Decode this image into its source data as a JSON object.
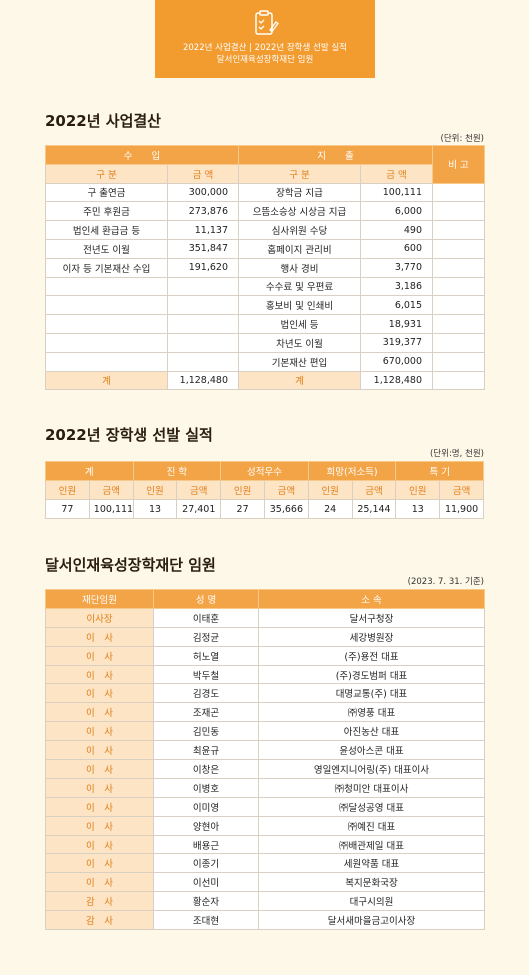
{
  "banner": {
    "lines": [
      "2022년 사업결산  |  2022년 장학생 선발 실적",
      "달서인재육성장학재단 임원"
    ]
  },
  "settlement": {
    "title": "2022년 사업결산",
    "unit": "(단위: 천원)",
    "head": {
      "income": "수　　입",
      "expense": "지　　출",
      "note": "비 고"
    },
    "subhead": [
      "구 분",
      "금 액",
      "구 분",
      "금 액"
    ],
    "rows": [
      [
        "구 출연금",
        "300,000",
        "장학금 지급",
        "100,111"
      ],
      [
        "주민 후원금",
        "273,876",
        "으뜸소승상 시상금 지급",
        "6,000"
      ],
      [
        "법인세 환급금 등",
        "11,137",
        "심사위원 수당",
        "490"
      ],
      [
        "전년도 이월",
        "351,847",
        "홈페이지 관리비",
        "600"
      ],
      [
        "이자 등 기본재산 수입",
        "191,620",
        "행사 경비",
        "3,770"
      ],
      [
        null,
        null,
        "수수료 및 우편료",
        "3,186"
      ],
      [
        null,
        null,
        "홍보비 및 인쇄비",
        "6,015"
      ],
      [
        null,
        null,
        "법인세 등",
        "18,931"
      ],
      [
        null,
        null,
        "차년도 이월",
        "319,377"
      ],
      [
        null,
        null,
        "기본재산 편입",
        "670,000"
      ]
    ],
    "total": [
      "계",
      "1,128,480",
      "계",
      "1,128,480"
    ]
  },
  "scholarship": {
    "title": "2022년 장학생 선발 실적",
    "unit": "(단위:명, 천원)",
    "head": [
      "계",
      "진 학",
      "성적우수",
      "희망(저소득)",
      "특 기"
    ],
    "subhead": [
      "인원",
      "금액",
      "인원",
      "금액",
      "인원",
      "금액",
      "인원",
      "금액",
      "인원",
      "금액"
    ],
    "row": [
      "77",
      "100,111",
      "13",
      "27,401",
      "27",
      "35,666",
      "24",
      "25,144",
      "13",
      "11,900"
    ]
  },
  "officers": {
    "title": "달서인재육성장학재단 임원",
    "date": "(2023. 7. 31. 기준)",
    "head": [
      "재단임원",
      "성 명",
      "소 속"
    ],
    "rows": [
      [
        "이사장",
        "이태훈",
        "달서구청장"
      ],
      [
        "이　사",
        "김정균",
        "세강병원장"
      ],
      [
        "이　사",
        "허노열",
        "(주)용전 대표"
      ],
      [
        "이　사",
        "박두철",
        "(주)경도범퍼 대표"
      ],
      [
        "이　사",
        "김경도",
        "대명교통(주) 대표"
      ],
      [
        "이　사",
        "조재곤",
        "㈜영풍 대표"
      ],
      [
        "이　사",
        "김민동",
        "아진농산 대표"
      ],
      [
        "이　사",
        "최윤규",
        "윤성아스콘 대표"
      ],
      [
        "이　사",
        "이창은",
        "영일엔지니어링(주) 대표이사"
      ],
      [
        "이　사",
        "이병호",
        "㈜청미안  대표이사"
      ],
      [
        "이　사",
        "이미영",
        "㈜달성공영 대표"
      ],
      [
        "이　사",
        "양현아",
        "㈜예진 대표"
      ],
      [
        "이　사",
        "배용근",
        "㈜배관제일 대표"
      ],
      [
        "이　사",
        "이종기",
        "세원약품 대표"
      ],
      [
        "이　사",
        "이선미",
        "복지문화국장"
      ],
      [
        "감　사",
        "황순자",
        "대구시의원"
      ],
      [
        "감　사",
        "조대현",
        "달서새마을금고이사장"
      ]
    ]
  }
}
